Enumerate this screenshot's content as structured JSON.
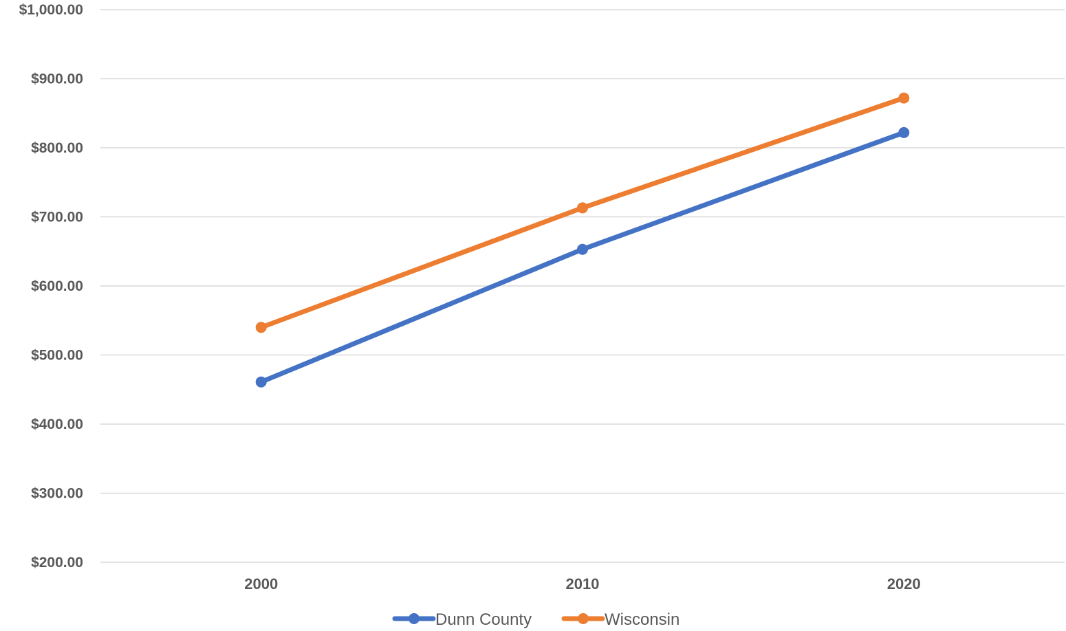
{
  "chart_data": {
    "type": "line",
    "title": "",
    "xlabel": "",
    "ylabel": "",
    "categories": [
      "2000",
      "2010",
      "2020"
    ],
    "y_ticks": [
      "$200.00",
      "$300.00",
      "$400.00",
      "$500.00",
      "$600.00",
      "$700.00",
      "$800.00",
      "$900.00",
      "$1,000.00"
    ],
    "ylim": [
      200,
      1000
    ],
    "grid": true,
    "legend_position": "bottom",
    "series": [
      {
        "name": "Dunn County",
        "values": [
          461,
          653,
          822
        ],
        "color": "#4472C4"
      },
      {
        "name": "Wisconsin",
        "values": [
          540,
          713,
          872
        ],
        "color": "#ED7D31"
      }
    ],
    "gridline_color": "#D9D9D9",
    "text_color": "#595959"
  }
}
